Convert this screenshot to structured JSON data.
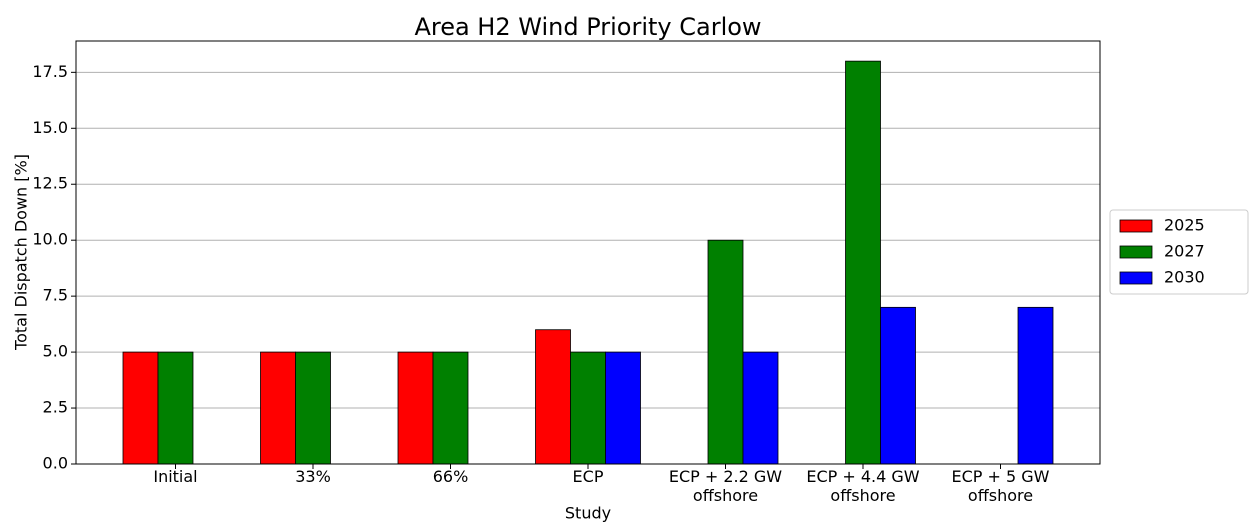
{
  "chart_data": {
    "type": "bar",
    "title": "Area H2 Wind Priority Carlow",
    "x_label": "Study",
    "y_label": "Total Dispatch Down [%]",
    "categories": [
      "Initial",
      "33%",
      "66%",
      "ECP",
      "ECP + 2.2 GW\noffshore",
      "ECP + 4.4 GW\noffshore",
      "ECP + 5 GW\noffshore"
    ],
    "series": [
      {
        "name": "2025",
        "color": "#ff0000",
        "values": [
          5,
          5,
          5,
          6,
          null,
          null,
          null
        ]
      },
      {
        "name": "2027",
        "color": "#008000",
        "values": [
          5,
          5,
          5,
          5,
          10,
          18,
          null
        ]
      },
      {
        "name": "2030",
        "color": "#0000ff",
        "values": [
          null,
          null,
          null,
          5,
          5,
          7,
          7
        ]
      }
    ],
    "ylim": [
      0,
      18.9
    ],
    "yticks": [
      {
        "value": 0,
        "label": "0.0"
      },
      2.5,
      {
        "value": 5,
        "label": "5.0"
      },
      7.5,
      {
        "value": 10,
        "label": "10.0"
      },
      12.5,
      {
        "value": 15,
        "label": "15.0"
      },
      17.5
    ],
    "grid": true,
    "legend": "right"
  }
}
